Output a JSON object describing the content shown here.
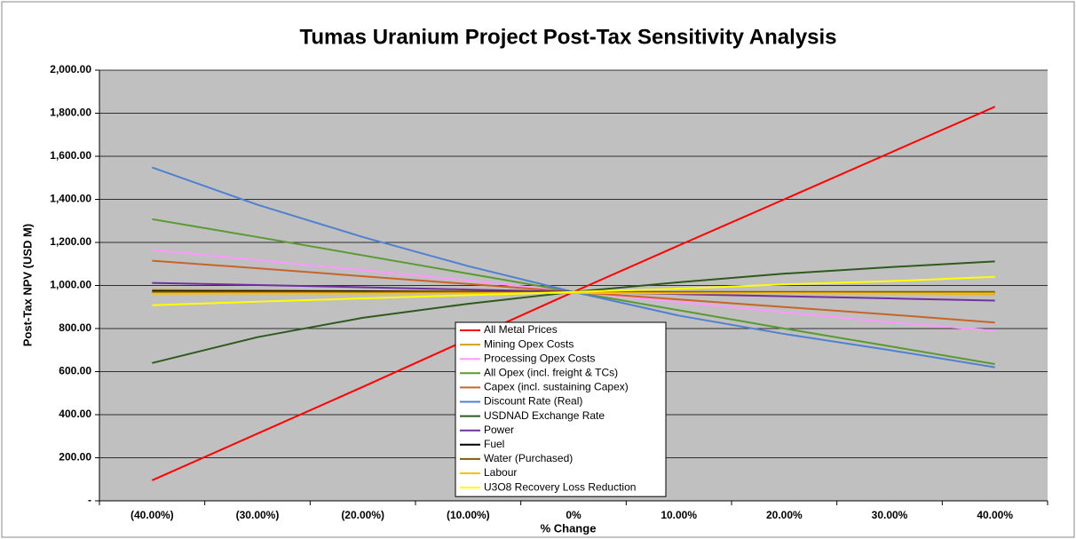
{
  "chart_data": {
    "type": "line",
    "title": "Tumas Uranium Project Post-Tax Sensitivity Analysis",
    "x_label": "% Change",
    "y_label": "Post-Tax NPV (USD M)",
    "categories": [
      "(40.00%)",
      "(30.00%)",
      "(20.00%)",
      "(10.00%)",
      "0%",
      "10.00%",
      "20.00%",
      "30.00%",
      "40.00%"
    ],
    "ylim": [
      0,
      2000
    ],
    "yticks": [
      {
        "value": 0,
        "label": "-"
      },
      {
        "value": 200,
        "label": "200.00"
      },
      {
        "value": 400,
        "label": "400.00"
      },
      {
        "value": 600,
        "label": "600.00"
      },
      {
        "value": 800,
        "label": "800.00"
      },
      {
        "value": 1000,
        "label": "1,000.00"
      },
      {
        "value": 1200,
        "label": "1,200.00"
      },
      {
        "value": 1400,
        "label": "1,400.00"
      },
      {
        "value": 1600,
        "label": "1,600.00"
      },
      {
        "value": 1800,
        "label": "1,800.00"
      },
      {
        "value": 2000,
        "label": "2,000.00"
      }
    ],
    "grid": true,
    "series": [
      {
        "name": "All Metal Prices",
        "color": "#ff0000",
        "values": [
          95,
          312,
          529,
          750,
          970,
          1186,
          1400,
          1615,
          1830
        ]
      },
      {
        "name": "Mining Opex Costs",
        "color": "#d4a017",
        "values": [
          980,
          978,
          975,
          973,
          970,
          968,
          965,
          963,
          960
        ]
      },
      {
        "name": "Processing Opex Costs",
        "color": "#ff99ff",
        "values": [
          1165,
          1118,
          1071,
          1023,
          970,
          923,
          876,
          829,
          790
        ]
      },
      {
        "name": "All Opex (incl. freight & TCs)",
        "color": "#5a9a32",
        "values": [
          1308,
          1225,
          1140,
          1055,
          970,
          885,
          800,
          718,
          635
        ]
      },
      {
        "name": "Capex (incl. sustaining Capex)",
        "color": "#c8642a",
        "values": [
          1115,
          1080,
          1043,
          1007,
          970,
          935,
          900,
          865,
          828
        ]
      },
      {
        "name": "Discount Rate (Real)",
        "color": "#4f81d0",
        "values": [
          1548,
          1375,
          1225,
          1090,
          970,
          860,
          775,
          700,
          620
        ]
      },
      {
        "name": "USDNAD Exchange Rate",
        "color": "#2e5a1e",
        "values": [
          640,
          760,
          850,
          915,
          970,
          1015,
          1055,
          1085,
          1112
        ]
      },
      {
        "name": "Power",
        "color": "#7030a0",
        "values": [
          1012,
          1002,
          992,
          981,
          970,
          960,
          950,
          940,
          930
        ]
      },
      {
        "name": "Fuel",
        "color": "#000000",
        "values": [
          975,
          974,
          973,
          971,
          970,
          969,
          968,
          966,
          965
        ]
      },
      {
        "name": "Water (Purchased)",
        "color": "#7f6000",
        "values": [
          970,
          970,
          970,
          970,
          970,
          970,
          970,
          970,
          970
        ]
      },
      {
        "name": "Labour",
        "color": "#ffc000",
        "values": [
          962,
          963,
          963,
          964,
          965,
          964,
          964,
          963,
          963
        ]
      },
      {
        "name": "U3O8 Recovery Loss Reduction",
        "color": "#ffff00",
        "values": [
          908,
          925,
          940,
          955,
          970,
          985,
          1005,
          1020,
          1040
        ]
      }
    ]
  }
}
